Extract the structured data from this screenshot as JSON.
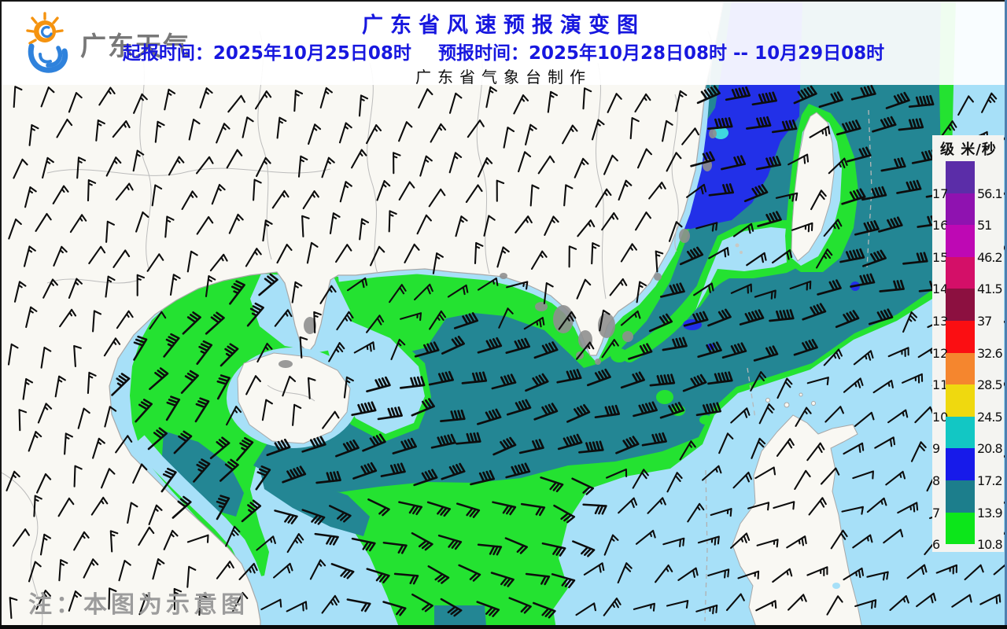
{
  "header": {
    "logo_text": "广东天气",
    "title": "广东省风速预报演变图",
    "init_time_label": "起报时间：2025年10月25日08时",
    "forecast_time_label": "预报时间：2025年10月28日08时 -- 10月29日08时",
    "producer": "广东省气象台制作"
  },
  "legend": {
    "level_header": "级",
    "unit_header": "米/秒",
    "rows": [
      {
        "level": "17",
        "speed": "56.1",
        "color": "#5B2DA8"
      },
      {
        "level": "16",
        "speed": "51",
        "color": "#8F12B0"
      },
      {
        "level": "15",
        "speed": "46.2",
        "color": "#BE08B4"
      },
      {
        "level": "14",
        "speed": "41.5",
        "color": "#D40F68"
      },
      {
        "level": "13",
        "speed": "37",
        "color": "#8C1040"
      },
      {
        "level": "12",
        "speed": "32.6",
        "color": "#FB0E12"
      },
      {
        "level": "11",
        "speed": "28.5",
        "color": "#F5862E"
      },
      {
        "level": "10",
        "speed": "24.5",
        "color": "#EFD90F"
      },
      {
        "level": "9",
        "speed": "20.8",
        "color": "#12C7C4"
      },
      {
        "level": "8",
        "speed": "17.2",
        "color": "#171AEA"
      },
      {
        "level": "7",
        "speed": "13.9",
        "color": "#1C7E8C"
      },
      {
        "level": "6",
        "speed": "10.8",
        "color": "#0CE61A"
      }
    ]
  },
  "note": "注：本图为示意图",
  "map": {
    "colors": {
      "sea": "#A7E0F8",
      "land": "#F9F8F3",
      "coast_border": "#A8A8A8",
      "province_border": "#BCBCBC",
      "urban": "#8F8F8F",
      "level6_green": "#24E231",
      "level7_teal": "#238694",
      "level8_blue": "#2230E8",
      "level9_cyan": "#3FD8DF",
      "barb": "#0D0D0D"
    },
    "features": [
      "mainland-south-china",
      "hainan-island",
      "taiwan-island",
      "luzon-island",
      "taiwan-strait-level8-wind-zone",
      "south-china-sea-level7-wind-band",
      "level6-wind-fringe",
      "gulf-of-tonkin-wind-area"
    ]
  }
}
